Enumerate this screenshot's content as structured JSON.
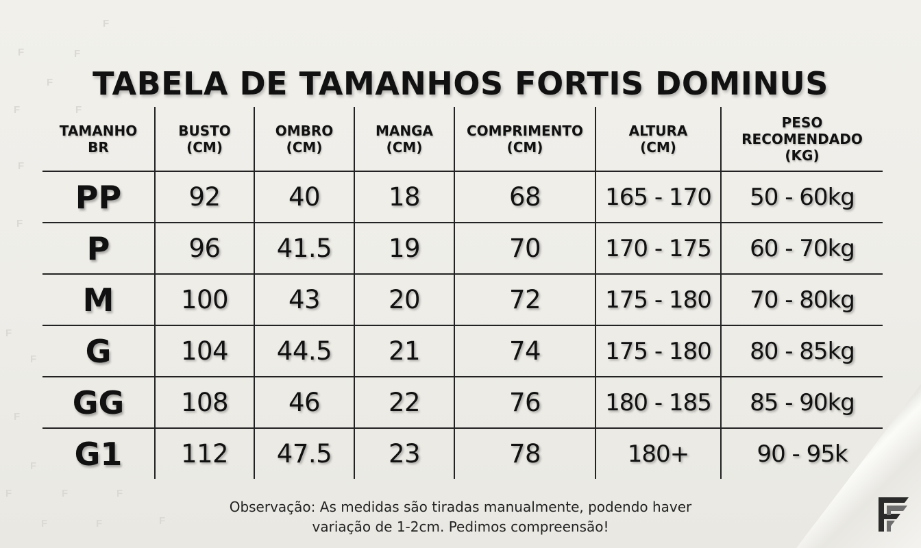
{
  "title": "TABELA DE TAMANHOS FORTIS DOMINUS",
  "table": {
    "headers": [
      {
        "line1": "TAMANHO",
        "line2": "BR",
        "line3": ""
      },
      {
        "line1": "BUSTO",
        "line2": "(CM)",
        "line3": ""
      },
      {
        "line1": "OMBRO",
        "line2": "(CM)",
        "line3": ""
      },
      {
        "line1": "MANGA",
        "line2": "(CM)",
        "line3": ""
      },
      {
        "line1": "COMPRIMENTO",
        "line2": "(CM)",
        "line3": ""
      },
      {
        "line1": "ALTURA",
        "line2": "(CM)",
        "line3": ""
      },
      {
        "line1": "PESO",
        "line2": "RECOMENDADO",
        "line3": "(KG)"
      }
    ],
    "rows": [
      [
        "PP",
        "92",
        "40",
        "18",
        "68",
        "165 - 170",
        "50 - 60kg"
      ],
      [
        "P",
        "96",
        "41.5",
        "19",
        "70",
        "170 - 175",
        "60 - 70kg"
      ],
      [
        "M",
        "100",
        "43",
        "20",
        "72",
        "175 - 180",
        "70 - 80kg"
      ],
      [
        "G",
        "104",
        "44.5",
        "21",
        "74",
        "175 - 180",
        "80 - 85kg"
      ],
      [
        "GG",
        "108",
        "46",
        "22",
        "76",
        "180 - 185",
        "85 - 90kg"
      ],
      [
        "G1",
        "112",
        "47.5",
        "23",
        "78",
        "180+",
        "90 - 95k"
      ]
    ]
  },
  "note": {
    "line1": "Observação: As medidas são tiradas manualmente, podendo haver",
    "line2": "variação de 1-2cm. Pedimos compreensão!"
  },
  "background_mark": "F",
  "colors": {
    "background": "#efeee9",
    "text": "#111111",
    "grid_lines": "#222222"
  },
  "icons": {
    "logo": "fortis-dominus-ff-logo"
  }
}
